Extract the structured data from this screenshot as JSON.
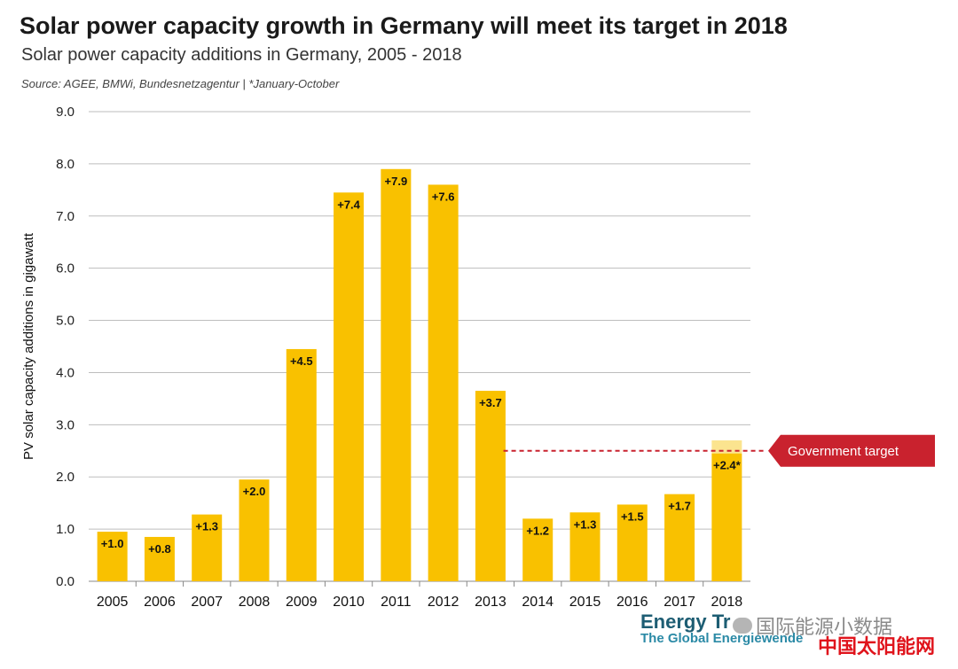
{
  "header": {
    "title": "Solar power capacity growth in Germany will meet its target in 2018",
    "subtitle": "Solar power capacity additions in Germany, 2005 - 2018",
    "source": "Source:  AGEE, BMWi, Bundesnetzagentur | *January-October"
  },
  "chart_data": {
    "type": "bar",
    "title": "Solar power capacity growth in Germany will meet its target in 2018",
    "subtitle": "Solar power capacity additions in Germany, 2005 - 2018",
    "xlabel": "",
    "ylabel": "PV solar capacity additions in gigawatt",
    "ylim": [
      0,
      9
    ],
    "yticks": [
      "0.0",
      "1.0",
      "2.0",
      "3.0",
      "4.0",
      "5.0",
      "6.0",
      "7.0",
      "8.0",
      "9.0"
    ],
    "categories": [
      "2005",
      "2006",
      "2007",
      "2008",
      "2009",
      "2010",
      "2011",
      "2012",
      "2013",
      "2014",
      "2015",
      "2016",
      "2017",
      "2018"
    ],
    "values": [
      0.95,
      0.85,
      1.28,
      1.95,
      4.45,
      7.45,
      7.9,
      7.6,
      3.65,
      1.2,
      1.32,
      1.47,
      1.67,
      2.45
    ],
    "labels": [
      "+1.0",
      "+0.8",
      "+1.3",
      "+2.0",
      "+4.5",
      "+7.4",
      "+7.9",
      "+7.6",
      "+3.7",
      "+1.2",
      "+1.3",
      "+1.5",
      "+1.7",
      "+2.4*"
    ],
    "extrapolated_2018_top": 2.7,
    "government_target": 2.5,
    "target_label": "Government target",
    "grid": true,
    "colors": {
      "bar": "#f9c100",
      "bar_light": "#fbe48f",
      "target_line": "#c9222e",
      "target_box": "#c9222e",
      "grid": "#bdbdbd"
    }
  },
  "logo": {
    "line1": "Energy Tr",
    "line2": "The Global Energiewende"
  },
  "watermark": {
    "top": "国际能源小数据",
    "bottom": "中国太阳能网"
  }
}
